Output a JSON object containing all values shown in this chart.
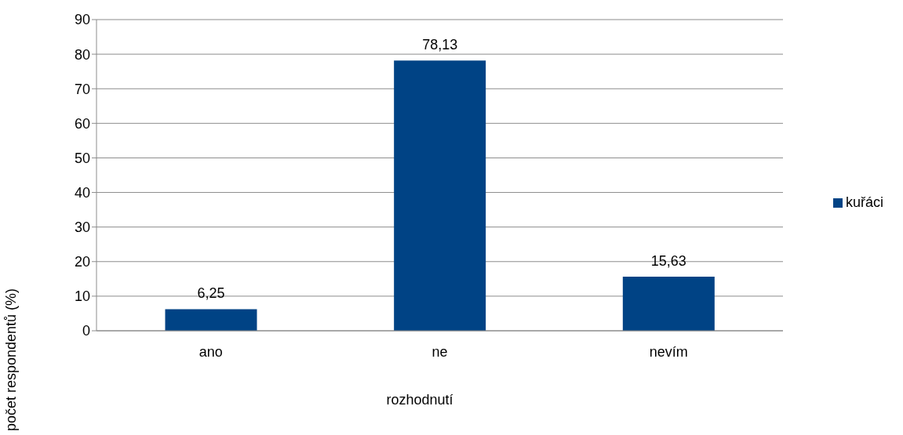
{
  "chart_data": {
    "type": "bar",
    "xlabel": "rozhodnutí",
    "ylabel": "počet respondentů (%)",
    "categories": [
      "ano",
      "ne",
      "nevím"
    ],
    "series": [
      {
        "name": "kuřáci",
        "color": "#004385",
        "values": [
          6.25,
          78.13,
          15.63
        ],
        "value_labels": [
          "6,25",
          "78,13",
          "15,63"
        ]
      }
    ],
    "ylim": [
      0,
      90
    ],
    "yticks": [
      0,
      10,
      20,
      30,
      40,
      50,
      60,
      70,
      80,
      90
    ],
    "grid": "y",
    "legend": "right"
  }
}
